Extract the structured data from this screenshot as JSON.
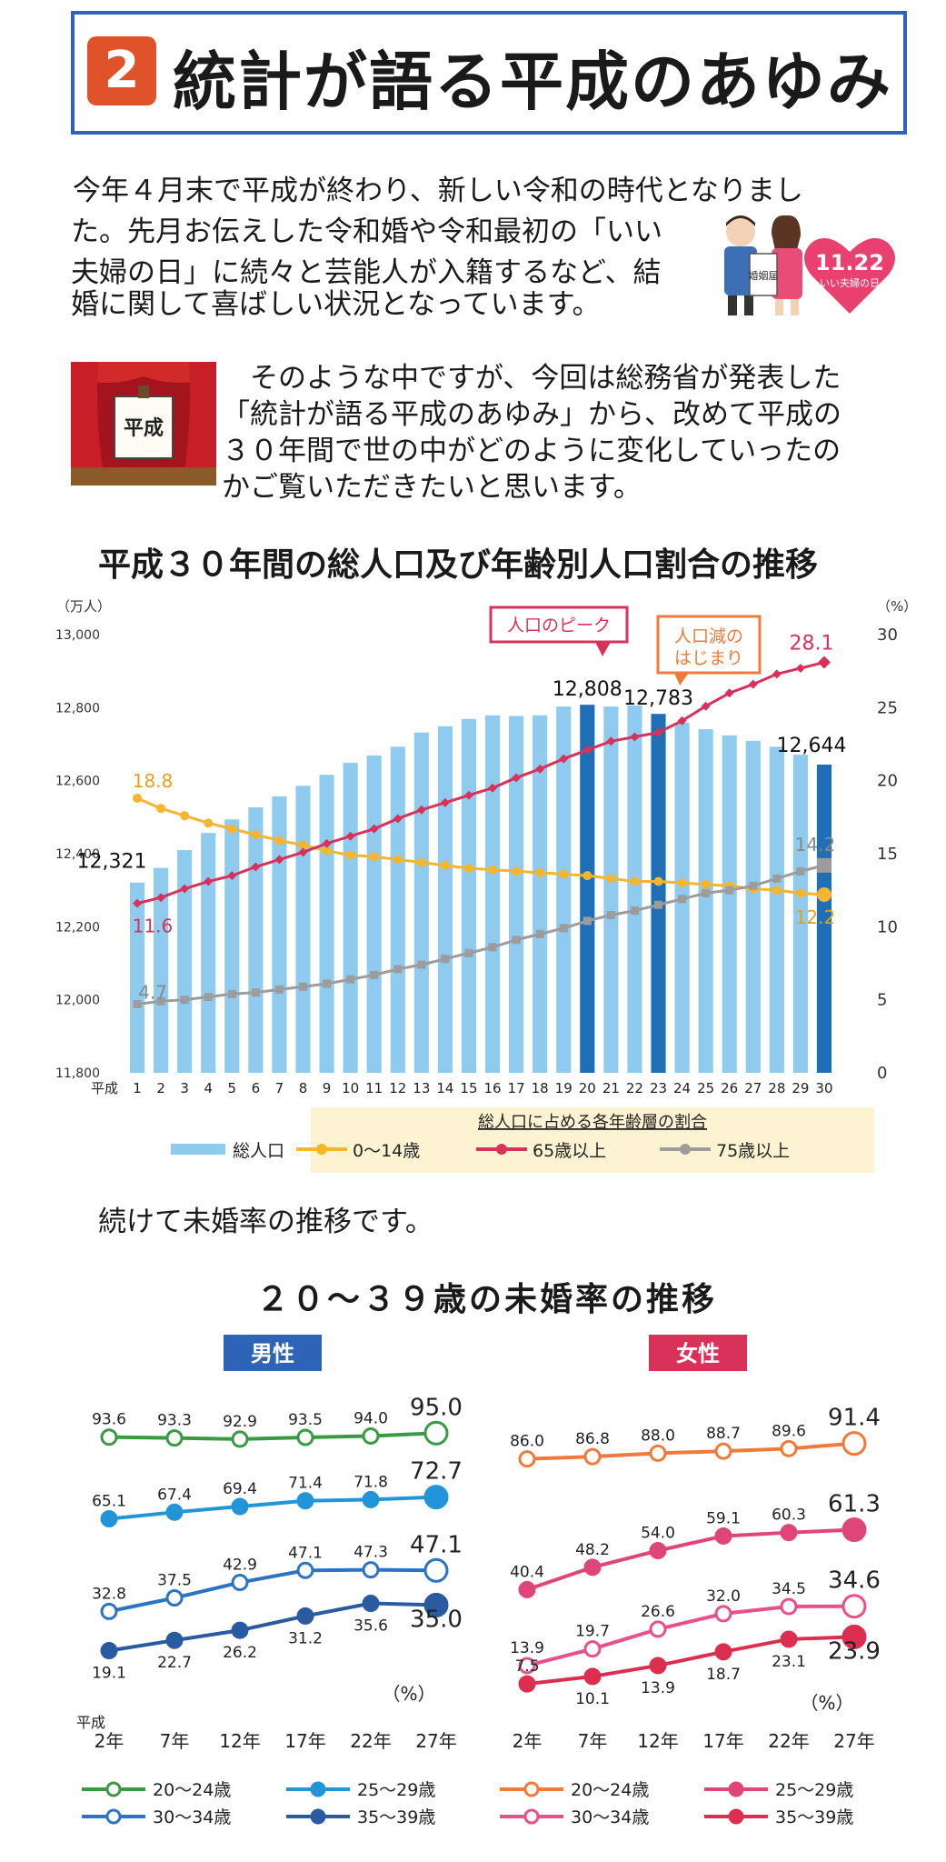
{
  "title": {
    "number": "2",
    "text": "統計が語る平成のあゆみ"
  },
  "intro": {
    "lines": [
      "今年４月末で平成が終わり、新しい令和の時代となりまし",
      "た。先月お伝えした令和婚や令和最初の「いい",
      "夫婦の日」に続々と芸能人が入籍するなど、結",
      "婚に関して喜ばしい状況となっています。"
    ],
    "heart_label": "11.22",
    "heart_sublabel": "いい夫婦の日",
    "couple_sign": "婚姻届"
  },
  "second": {
    "lines": [
      "そのような中ですが、今回は総務省が発表した",
      "「統計が語る平成のあゆみ」から、改めて平成の",
      "３０年間で世の中がどのように変化していったの",
      "かご覧いただきたいと思います。"
    ],
    "sign_text": "平成"
  },
  "transition": "続けて未婚率の推移です。",
  "chart_data": [
    {
      "type": "bar",
      "title": "平成３０年間の総人口及び年齢別人口割合の推移",
      "left_unit": "（万人）",
      "right_unit": "（%）",
      "ylim_left": [
        11800,
        13000
      ],
      "ylim_right": [
        0,
        30
      ],
      "left_ticks": [
        "13,000",
        "12,800",
        "12,600",
        "12,400",
        "12,200",
        "12,000",
        "11,800"
      ],
      "right_ticks": [
        "30",
        "25",
        "20",
        "15",
        "10",
        "5",
        "0"
      ],
      "x_prefix": "平成",
      "categories": [
        "1",
        "2",
        "3",
        "4",
        "5",
        "6",
        "7",
        "8",
        "9",
        "10",
        "11",
        "12",
        "13",
        "14",
        "15",
        "16",
        "17",
        "18",
        "19",
        "20",
        "21",
        "22",
        "23",
        "24",
        "25",
        "26",
        "27",
        "28",
        "29",
        "30"
      ],
      "bar_series": {
        "name": "総人口",
        "values": [
          12321,
          12361,
          12410,
          12457,
          12494,
          12527,
          12557,
          12586,
          12616,
          12649,
          12669,
          12693,
          12732,
          12749,
          12769,
          12779,
          12777,
          12779,
          12803,
          12808,
          12803,
          12806,
          12783,
          12759,
          12741,
          12724,
          12709,
          12693,
          12671,
          12644
        ]
      },
      "highlight": [
        "20",
        "23",
        "30"
      ],
      "line_series": [
        {
          "name": "0〜14歳",
          "color": "#f5b52e",
          "values": [
            18.8,
            18.1,
            17.6,
            17.1,
            16.7,
            16.3,
            15.9,
            15.6,
            15.2,
            14.9,
            14.8,
            14.6,
            14.4,
            14.2,
            14.0,
            13.9,
            13.8,
            13.7,
            13.6,
            13.5,
            13.3,
            13.1,
            13.1,
            13.0,
            12.9,
            12.8,
            12.6,
            12.5,
            12.3,
            12.2
          ]
        },
        {
          "name": "65歳以上",
          "color": "#d8325b",
          "values": [
            11.6,
            12.0,
            12.6,
            13.1,
            13.5,
            14.1,
            14.6,
            15.1,
            15.7,
            16.2,
            16.7,
            17.4,
            18.0,
            18.5,
            19.0,
            19.5,
            20.2,
            20.8,
            21.5,
            22.1,
            22.7,
            23.0,
            23.3,
            24.1,
            25.1,
            26.0,
            26.6,
            27.3,
            27.7,
            28.1
          ]
        },
        {
          "name": "75歳以上",
          "color": "#9c9c9c",
          "values": [
            4.7,
            4.9,
            5.0,
            5.2,
            5.4,
            5.5,
            5.7,
            5.9,
            6.1,
            6.4,
            6.7,
            7.1,
            7.4,
            7.8,
            8.2,
            8.6,
            9.1,
            9.5,
            9.9,
            10.4,
            10.8,
            11.1,
            11.5,
            11.9,
            12.3,
            12.5,
            12.8,
            13.3,
            13.8,
            14.2
          ]
        }
      ],
      "bar_labels": [
        {
          "index": 0,
          "text": "12,321"
        },
        {
          "index": 19,
          "text": "12,808"
        },
        {
          "index": 22,
          "text": "12,783"
        },
        {
          "index": 29,
          "text": "12,644"
        }
      ],
      "line_labels": {
        "start": [
          "18.8",
          "11.6",
          "4.7"
        ],
        "end": [
          "12.2",
          "28.1",
          "14.2"
        ]
      },
      "callouts": {
        "peak": "人口のピーク",
        "decline": "人口減の\nはじまり"
      },
      "legend": {
        "caption": "総人口に占める各年齢層の割合",
        "items": [
          "総人口",
          "0〜14歳",
          "65歳以上",
          "75歳以上"
        ]
      }
    },
    {
      "type": "line",
      "title": "２０〜３９歳の未婚率の推移",
      "unit": "（%）",
      "x_prefix": "平成",
      "categories": [
        "2年",
        "7年",
        "12年",
        "17年",
        "22年",
        "27年"
      ],
      "panels": [
        {
          "name": "男性",
          "color": "#2e64b8",
          "series": [
            {
              "name": "20〜24歳",
              "color": "#3a9a44",
              "filled": false,
              "values": [
                93.6,
                93.3,
                92.9,
                93.5,
                94.0,
                95.0
              ],
              "labels": [
                "93.6",
                "93.3",
                "92.9",
                "93.5",
                "94.0",
                "95.0"
              ]
            },
            {
              "name": "25〜29歳",
              "color": "#2295d8",
              "filled": true,
              "values": [
                65.1,
                67.4,
                69.4,
                71.4,
                71.8,
                72.7
              ],
              "labels": [
                "65.1",
                "67.4",
                "69.4",
                "71.4",
                "71.8",
                "72.7"
              ]
            },
            {
              "name": "30〜34歳",
              "color": "#2b74c4",
              "filled": false,
              "values": [
                32.8,
                37.5,
                42.9,
                47.1,
                47.3,
                47.1
              ],
              "labels": [
                "32.8",
                "37.5",
                "42.9",
                "47.1",
                "47.3",
                "47.1"
              ]
            },
            {
              "name": "35〜39歳",
              "color": "#2a5aa0",
              "filled": true,
              "values": [
                19.1,
                22.7,
                26.2,
                31.2,
                35.6,
                35.0
              ],
              "labels": [
                "19.1",
                "22.7",
                "26.2",
                "31.2",
                "35.6",
                "35.0"
              ]
            }
          ]
        },
        {
          "name": "女性",
          "color": "#d8325b",
          "series": [
            {
              "name": "20〜24歳",
              "color": "#ef7a3a",
              "filled": false,
              "values": [
                86.0,
                86.8,
                88.0,
                88.7,
                89.6,
                91.4
              ],
              "labels": [
                "86.0",
                "86.8",
                "88.0",
                "88.7",
                "89.6",
                "91.4"
              ]
            },
            {
              "name": "25〜29歳",
              "color": "#e0457a",
              "filled": true,
              "values": [
                40.4,
                48.2,
                54.0,
                59.1,
                60.3,
                61.3
              ],
              "labels": [
                "40.4",
                "48.2",
                "54.0",
                "59.1",
                "60.3",
                "61.3"
              ]
            },
            {
              "name": "30〜34歳",
              "color": "#e8508a",
              "filled": false,
              "values": [
                13.9,
                19.7,
                26.6,
                32.0,
                34.5,
                34.6
              ],
              "labels": [
                "13.9",
                "19.7",
                "26.6",
                "32.0",
                "34.5",
                "34.6"
              ]
            },
            {
              "name": "35〜39歳",
              "color": "#dc2e4f",
              "filled": true,
              "values": [
                7.5,
                10.1,
                13.9,
                18.7,
                23.1,
                23.9
              ],
              "labels": [
                "7.5",
                "10.1",
                "13.9",
                "18.7",
                "23.1",
                "23.9"
              ]
            }
          ]
        }
      ]
    }
  ]
}
